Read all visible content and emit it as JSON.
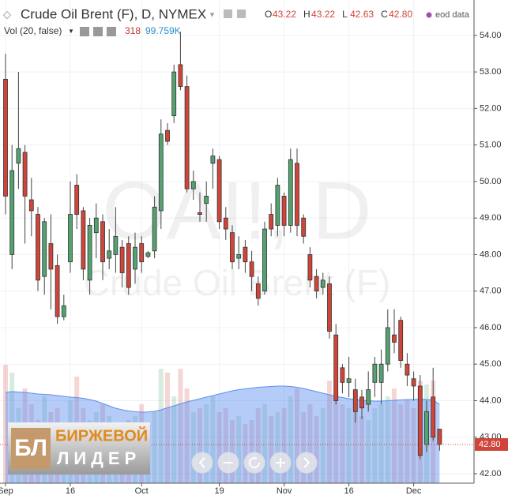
{
  "chart_data": {
    "type": "candlestick",
    "header": {
      "title": "Crude Oil Brent (F), D, NYMEX",
      "ohlc": [
        {
          "key": "O",
          "value": "43.22"
        },
        {
          "key": "H",
          "value": "43.22"
        },
        {
          "key": "L",
          "value": "42.63"
        },
        {
          "key": "C",
          "value": "42.80"
        }
      ],
      "source": "eod data",
      "volume_title": "Vol (20, false)",
      "volume_last": "318",
      "volume_ma_last": "99.759K"
    },
    "watermark": {
      "symbol": "OAI!, D",
      "description": "Crude Oil Brent (F)"
    },
    "logo": {
      "mark": "БЛ",
      "line1": "БИРЖЕВОЙ",
      "line2": "ЛИДЕР"
    },
    "categories": [
      "Sep",
      null,
      null,
      null,
      null,
      null,
      null,
      null,
      null,
      null,
      "16",
      null,
      null,
      null,
      null,
      null,
      null,
      null,
      null,
      null,
      null,
      "Oct",
      null,
      null,
      null,
      null,
      null,
      null,
      null,
      null,
      null,
      null,
      null,
      "19",
      null,
      null,
      null,
      null,
      null,
      null,
      null,
      null,
      null,
      "Nov",
      null,
      null,
      null,
      null,
      null,
      null,
      null,
      null,
      null,
      "16",
      null,
      null,
      null,
      null,
      null,
      null,
      null,
      null,
      null,
      "Dec",
      null,
      null,
      null,
      null
    ],
    "open": [
      52.8,
      48.0,
      50.5,
      50.8,
      49.5,
      49.1,
      47.4,
      48.3,
      47.7,
      46.3,
      47.8,
      49.9,
      49.2,
      47.3,
      48.6,
      48.9,
      47.9,
      48.0,
      48.2,
      48.3,
      47.6,
      48.3,
      47.95,
      48.1,
      49.2,
      51.4,
      51.8,
      53.2,
      52.6,
      49.8,
      49.15,
      49.4,
      50.5,
      50.6,
      49.0,
      48.6,
      47.9,
      48.2,
      47.8,
      47.2,
      47.0,
      49.1,
      48.8,
      49.6,
      48.8,
      50.5,
      49.0,
      48.0,
      47.4,
      47.1,
      47.2,
      45.8,
      44.9,
      44.5,
      44.3,
      44.1,
      43.9,
      44.5,
      44.5,
      45.0,
      45.8,
      46.2,
      45.0,
      44.6,
      44.4,
      42.8,
      44.1,
      43.22
    ],
    "high": [
      53.5,
      51.0,
      53.0,
      51.0,
      50.1,
      49.3,
      49.0,
      49.1,
      48.0,
      46.9,
      50.0,
      50.2,
      49.3,
      49.0,
      49.4,
      49.1,
      48.7,
      49.3,
      48.4,
      48.5,
      48.6,
      48.5,
      48.1,
      49.6,
      51.7,
      51.6,
      53.2,
      54.1,
      52.9,
      50.3,
      49.7,
      50.0,
      50.9,
      50.7,
      49.3,
      48.8,
      48.5,
      48.4,
      48.1,
      47.4,
      48.9,
      49.4,
      50.1,
      49.7,
      50.9,
      50.9,
      49.1,
      48.2,
      47.6,
      47.5,
      47.4,
      46.1,
      45.0,
      45.2,
      44.6,
      44.3,
      44.8,
      45.2,
      45.4,
      46.5,
      46.5,
      46.3,
      45.3,
      44.8,
      44.7,
      44.0,
      44.9,
      43.22
    ],
    "low": [
      49.1,
      47.6,
      49.8,
      48.3,
      48.5,
      47.0,
      46.9,
      46.5,
      46.1,
      46.2,
      47.5,
      48.7,
      47.3,
      46.9,
      47.9,
      47.3,
      47.6,
      47.5,
      47.1,
      46.9,
      47.2,
      47.5,
      47.9,
      47.9,
      48.7,
      51.0,
      51.6,
      52.5,
      49.7,
      49.5,
      48.9,
      48.9,
      49.8,
      48.7,
      48.4,
      47.6,
      47.6,
      47.5,
      47.0,
      46.6,
      46.9,
      48.5,
      48.5,
      48.5,
      48.6,
      48.5,
      48.3,
      47.1,
      46.8,
      46.9,
      45.7,
      43.9,
      44.2,
      44.1,
      43.4,
      43.5,
      43.7,
      44.1,
      43.9,
      44.8,
      45.3,
      44.9,
      44.4,
      44.0,
      42.4,
      42.6,
      42.9,
      42.63
    ],
    "close": [
      49.6,
      50.3,
      50.9,
      49.6,
      49.2,
      47.3,
      48.9,
      47.6,
      46.3,
      46.6,
      49.1,
      49.1,
      47.6,
      48.8,
      49.0,
      47.8,
      48.1,
      48.5,
      47.5,
      47.1,
      48.2,
      47.8,
      48.05,
      49.3,
      51.3,
      51.1,
      53.0,
      52.6,
      49.8,
      50.0,
      49.1,
      49.6,
      50.7,
      48.9,
      48.7,
      47.8,
      48.0,
      47.8,
      47.4,
      46.8,
      48.7,
      48.7,
      49.9,
      48.8,
      50.6,
      48.8,
      48.5,
      47.3,
      47.0,
      47.3,
      45.9,
      44.0,
      44.5,
      44.6,
      43.7,
      43.8,
      44.3,
      45.0,
      45.0,
      46.0,
      45.6,
      45.1,
      44.7,
      44.4,
      42.5,
      43.7,
      43.0,
      42.8
    ],
    "volume": [
      150000,
      140000,
      95000,
      120000,
      100000,
      80000,
      110000,
      90000,
      95000,
      75000,
      105000,
      135000,
      95000,
      80000,
      90000,
      100000,
      85000,
      75000,
      70000,
      80000,
      85000,
      100000,
      75000,
      90000,
      145000,
      140000,
      110000,
      145000,
      120000,
      90000,
      95000,
      100000,
      110000,
      90000,
      95000,
      80000,
      85000,
      75000,
      80000,
      95000,
      100000,
      85000,
      90000,
      95000,
      110000,
      120000,
      90000,
      100000,
      85000,
      95000,
      130000,
      115000,
      100000,
      95000,
      90000,
      85000,
      80000,
      95000,
      100000,
      110000,
      120000,
      100000,
      105000,
      95000,
      130000,
      125000,
      130000,
      318
    ],
    "volume_ma": [
      115000,
      116000,
      115500,
      115000,
      114000,
      113000,
      112500,
      112000,
      111000,
      110000,
      109000,
      108500,
      107500,
      106000,
      104000,
      101000,
      98000,
      95000,
      93000,
      91500,
      90500,
      90000,
      90200,
      91000,
      93000,
      95500,
      98000,
      100500,
      103000,
      105000,
      107000,
      109000,
      111000,
      113000,
      115000,
      117000,
      118500,
      119500,
      120500,
      121500,
      122000,
      122500,
      123000,
      123000,
      122500,
      121500,
      120000,
      118000,
      116000,
      114000,
      112000,
      110000,
      108500,
      107000,
      106000,
      105000,
      104500,
      104000,
      104000,
      104500,
      105000,
      105500,
      106000,
      106000,
      106500,
      106000,
      105500,
      99759
    ],
    "up_color": "#53a26f",
    "down_color": "#d0453a",
    "volume_ma_color": "#5b8ff0",
    "ylim": [
      41.74,
      54.97
    ],
    "yticks": [
      {
        "value": 42,
        "label": "42.00"
      },
      {
        "value": 43,
        "label": "43.00"
      },
      {
        "value": 44,
        "label": "44.00"
      },
      {
        "value": 45,
        "label": "45.00"
      },
      {
        "value": 46,
        "label": "46.00"
      },
      {
        "value": 47,
        "label": "47.00"
      },
      {
        "value": 48,
        "label": "48.00"
      },
      {
        "value": 49,
        "label": "49.00"
      },
      {
        "value": 50,
        "label": "50.00"
      },
      {
        "value": 51,
        "label": "51.00"
      },
      {
        "value": 52,
        "label": "52.00"
      },
      {
        "value": 53,
        "label": "53.00"
      },
      {
        "value": 54,
        "label": "54.00"
      }
    ],
    "volume_ylim": [
      0,
      150000
    ],
    "grid": true
  }
}
